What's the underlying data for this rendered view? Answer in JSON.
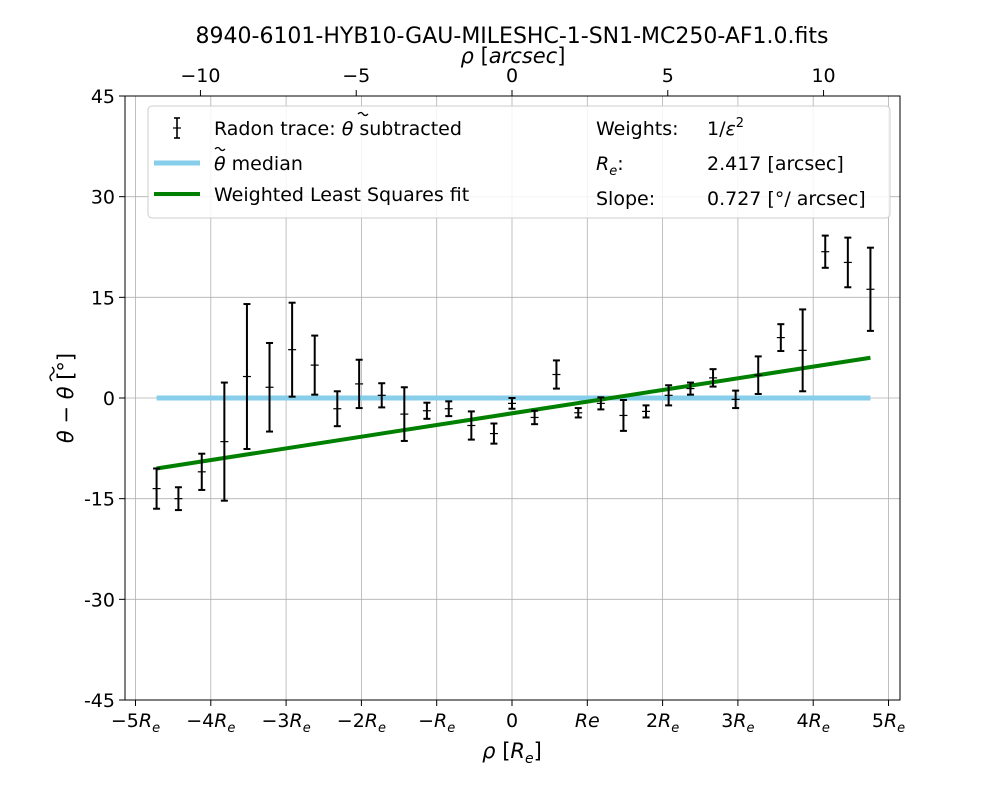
{
  "title": "8940-6101-HYB10-GAU-MILESHC-1-SN1-MC250-AF1.0.fits",
  "chart_data": {
    "type": "scatter",
    "xlabel": "ρ [R_e]",
    "ylabel": "θ − θ̃ [°]",
    "top_xlabel": "ρ [arcsec]",
    "xlim": [
      -5.0,
      5.0
    ],
    "ylim": [
      -45,
      45
    ],
    "x_ticks": [
      {
        "value": -5,
        "label": "−5R_e"
      },
      {
        "value": -4,
        "label": "−4R_e"
      },
      {
        "value": -3,
        "label": "−3R_e"
      },
      {
        "value": -2,
        "label": "−2R_e"
      },
      {
        "value": -1,
        "label": "−R_e"
      },
      {
        "value": 0,
        "label": "0"
      },
      {
        "value": 1,
        "label": "Re"
      },
      {
        "value": 2,
        "label": "2R_e"
      },
      {
        "value": 3,
        "label": "3R_e"
      },
      {
        "value": 4,
        "label": "4R_e"
      },
      {
        "value": 5,
        "label": "5R_e"
      }
    ],
    "y_ticks": [
      {
        "value": 45,
        "label": "45"
      },
      {
        "value": 30,
        "label": "30"
      },
      {
        "value": 15,
        "label": "15"
      },
      {
        "value": 0,
        "label": "0"
      },
      {
        "value": -15,
        "label": "-15"
      },
      {
        "value": -30,
        "label": "-30"
      },
      {
        "value": -45,
        "label": "-45"
      }
    ],
    "top_ticks": [
      {
        "value": -10,
        "label": "−10"
      },
      {
        "value": -5,
        "label": "−5"
      },
      {
        "value": 0,
        "label": "0"
      },
      {
        "value": 5,
        "label": "5"
      },
      {
        "value": 10,
        "label": "10"
      }
    ],
    "re_arcsec": 2.417,
    "grid": true,
    "legend_position": "top",
    "series": [
      {
        "name": "Radon trace: θ̃ subtracted",
        "color": "#000000",
        "points": [
          {
            "x": -4.72,
            "y": -13.5,
            "err": 3.0
          },
          {
            "x": -4.43,
            "y": -15.0,
            "err": 1.7
          },
          {
            "x": -4.12,
            "y": -11.0,
            "err": 2.7
          },
          {
            "x": -3.82,
            "y": -6.5,
            "err": 8.8
          },
          {
            "x": -3.52,
            "y": 3.2,
            "err": 10.8
          },
          {
            "x": -3.22,
            "y": 1.6,
            "err": 6.6
          },
          {
            "x": -2.92,
            "y": 7.2,
            "err": 7.0
          },
          {
            "x": -2.62,
            "y": 4.9,
            "err": 4.4
          },
          {
            "x": -2.32,
            "y": -1.6,
            "err": 2.6
          },
          {
            "x": -2.03,
            "y": 2.1,
            "err": 3.6
          },
          {
            "x": -1.73,
            "y": 0.4,
            "err": 1.8
          },
          {
            "x": -1.43,
            "y": -2.4,
            "err": 4.0
          },
          {
            "x": -1.13,
            "y": -1.9,
            "err": 1.2
          },
          {
            "x": -0.84,
            "y": -1.6,
            "err": 1.1
          },
          {
            "x": -0.54,
            "y": -4.1,
            "err": 2.1
          },
          {
            "x": -0.24,
            "y": -5.3,
            "err": 1.5
          },
          {
            "x": 0.0,
            "y": -0.8,
            "err": 0.8
          },
          {
            "x": 0.3,
            "y": -2.9,
            "err": 1.0
          },
          {
            "x": 0.59,
            "y": 3.5,
            "err": 2.1
          },
          {
            "x": 0.88,
            "y": -2.2,
            "err": 0.7
          },
          {
            "x": 1.18,
            "y": -0.8,
            "err": 0.9
          },
          {
            "x": 1.48,
            "y": -2.6,
            "err": 2.3
          },
          {
            "x": 1.78,
            "y": -2.0,
            "err": 0.9
          },
          {
            "x": 2.08,
            "y": 0.4,
            "err": 1.5
          },
          {
            "x": 2.37,
            "y": 1.4,
            "err": 0.9
          },
          {
            "x": 2.67,
            "y": 3.0,
            "err": 1.3
          },
          {
            "x": 2.97,
            "y": -0.2,
            "err": 1.3
          },
          {
            "x": 3.27,
            "y": 3.4,
            "err": 2.8
          },
          {
            "x": 3.57,
            "y": 9.0,
            "err": 2.0
          },
          {
            "x": 3.86,
            "y": 7.1,
            "err": 6.1
          },
          {
            "x": 4.16,
            "y": 21.8,
            "err": 2.4
          },
          {
            "x": 4.46,
            "y": 20.2,
            "err": 3.7
          },
          {
            "x": 4.76,
            "y": 16.2,
            "err": 6.2
          }
        ]
      },
      {
        "name": "θ̃ median",
        "color": "#87CEEB",
        "x": [
          -4.72,
          4.76
        ],
        "y": [
          0,
          0
        ]
      },
      {
        "name": "Weighted Least Squares fit",
        "color": "#008000",
        "x": [
          -4.72,
          4.76
        ],
        "y": [
          -10.5,
          6.0
        ]
      }
    ],
    "stats": {
      "weights_label": "Weights:",
      "weights_value": "1/ε²",
      "re_label": "R_e:",
      "re_value": "2.417 [arcsec]",
      "slope_label": "Slope:",
      "slope_value": "0.727 [°/ arcsec]"
    }
  }
}
